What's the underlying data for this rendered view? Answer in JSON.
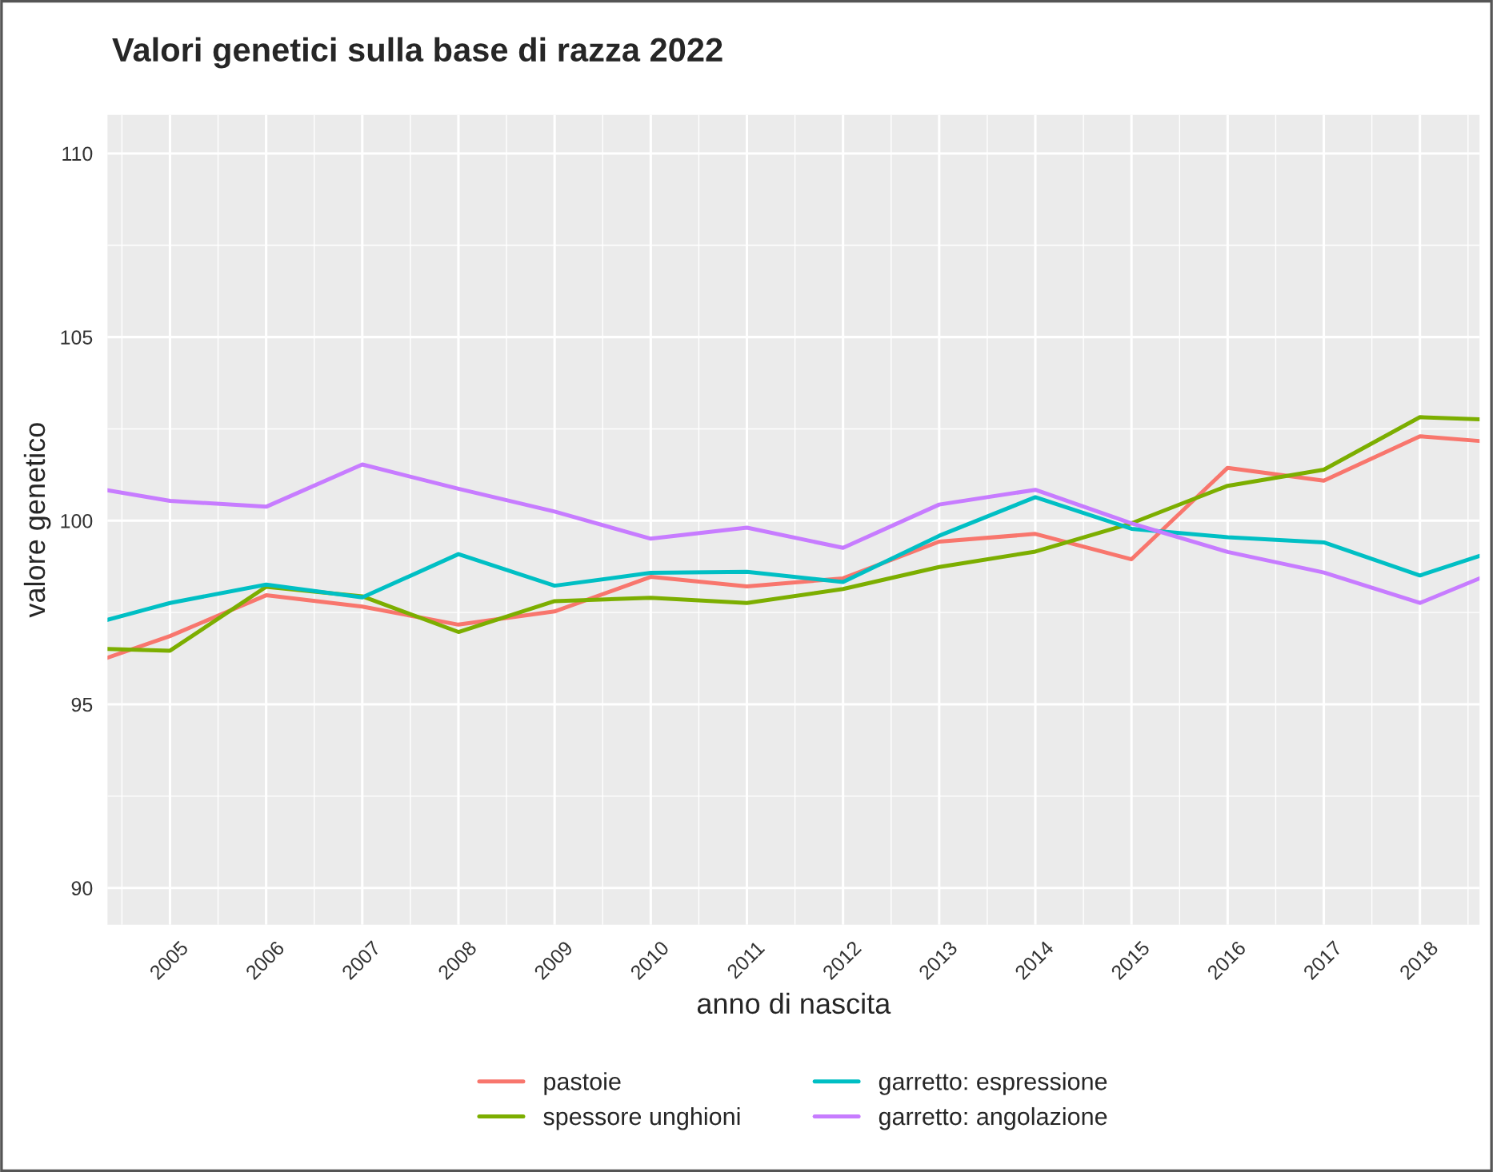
{
  "chart_data": {
    "type": "line",
    "title": "Valori genetici sulla base di razza 2022",
    "xlabel": "anno di nascita",
    "ylabel": "valore genetico",
    "x": [
      2004.35,
      2005,
      2006,
      2007,
      2008,
      2009,
      2010,
      2011,
      2012,
      2013,
      2014,
      2015,
      2016,
      2017,
      2018,
      2018.62
    ],
    "series": [
      {
        "name": "pastoie",
        "color": "#f8766d",
        "values": [
          96.27,
          96.86,
          97.97,
          97.66,
          97.17,
          97.53,
          98.47,
          98.21,
          98.43,
          99.43,
          99.64,
          98.95,
          101.44,
          101.09,
          102.3,
          102.17
        ]
      },
      {
        "name": "spessore unghioni",
        "color": "#7cae00",
        "values": [
          96.51,
          96.46,
          98.2,
          97.94,
          96.97,
          97.81,
          97.9,
          97.76,
          98.14,
          98.74,
          99.16,
          99.93,
          100.95,
          101.39,
          102.82,
          102.76
        ]
      },
      {
        "name": "garretto: espressione",
        "color": "#00bfc4",
        "values": [
          97.3,
          97.76,
          98.26,
          97.91,
          99.09,
          98.23,
          98.58,
          98.61,
          98.33,
          99.59,
          100.64,
          99.78,
          99.55,
          99.41,
          98.51,
          99.04
        ]
      },
      {
        "name": "garretto: angolazione",
        "color": "#c77cff",
        "values": [
          100.83,
          100.54,
          100.38,
          101.53,
          100.87,
          100.25,
          99.51,
          99.81,
          99.26,
          100.44,
          100.84,
          99.93,
          99.15,
          98.59,
          97.76,
          98.43
        ]
      }
    ],
    "xlim": [
      2004.35,
      2018.62
    ],
    "xticks": [
      2005,
      2006,
      2007,
      2008,
      2009,
      2010,
      2011,
      2012,
      2013,
      2014,
      2015,
      2016,
      2017,
      2018
    ],
    "ylim": [
      89,
      111.05
    ],
    "yticks": [
      90,
      95,
      100,
      105,
      110
    ],
    "grid": true,
    "legend": "bottom",
    "marker": "none",
    "line_style": "solid"
  }
}
